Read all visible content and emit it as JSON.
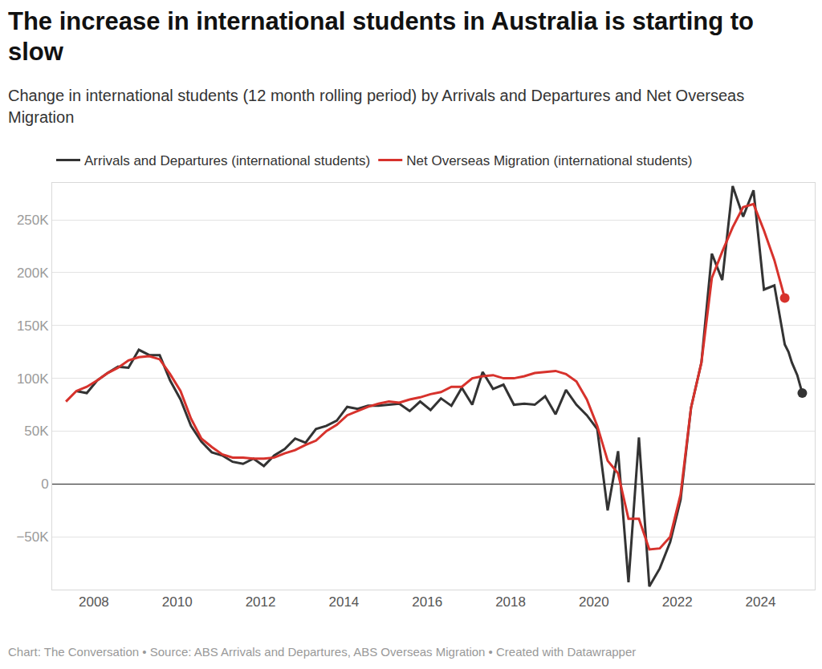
{
  "chart_data": {
    "type": "line",
    "title": "The increase in international students in Australia is starting to slow",
    "subtitle": "Change in international students (12 month rolling period) by Arrivals and Departures and Net Overseas Migration",
    "annotations": [
      "Chart: The Conversation • Source: ABS Arrivals and Departures, ABS Overseas Migration  • Created with Datawrapper"
    ],
    "legend": "top left",
    "grid": true,
    "xlim": [
      2007,
      2025.3
    ],
    "xticks": [
      2008,
      2010,
      2012,
      2014,
      2016,
      2018,
      2020,
      2022,
      2024
    ],
    "ylim": [
      -100000,
      285000
    ],
    "yticks": [
      {
        "value": -50000,
        "label": "−50K"
      },
      0,
      {
        "value": 50000,
        "label": "50K"
      },
      {
        "value": 100000,
        "label": "100K"
      },
      {
        "value": 150000,
        "label": "150K"
      },
      {
        "value": 200000,
        "label": "200K"
      },
      {
        "value": 250000,
        "label": "250K"
      }
    ],
    "series": [
      {
        "name": "Arrivals and Departures (international students)",
        "color": "#333333",
        "marker": "last",
        "x": [
          2007.58,
          2007.83,
          2008.08,
          2008.33,
          2008.58,
          2008.83,
          2009.08,
          2009.33,
          2009.58,
          2009.83,
          2010.08,
          2010.33,
          2010.58,
          2010.83,
          2011.08,
          2011.33,
          2011.58,
          2011.83,
          2012.08,
          2012.33,
          2012.58,
          2012.83,
          2013.08,
          2013.33,
          2013.58,
          2013.83,
          2014.08,
          2014.33,
          2014.58,
          2014.83,
          2015.08,
          2015.33,
          2015.58,
          2015.83,
          2016.08,
          2016.33,
          2016.58,
          2016.83,
          2017.08,
          2017.33,
          2017.58,
          2017.83,
          2018.08,
          2018.33,
          2018.58,
          2018.83,
          2019.08,
          2019.33,
          2019.58,
          2019.83,
          2020.08,
          2020.33,
          2020.58,
          2020.83,
          2021.08,
          2021.33,
          2021.58,
          2021.83,
          2022.08,
          2022.33,
          2022.58,
          2022.83,
          2023.08,
          2023.33,
          2023.58,
          2023.83,
          2024.08,
          2024.33,
          2024.58,
          2024.67,
          2024.75,
          2024.88,
          2025.0
        ],
        "values": [
          88000,
          86000,
          98000,
          105000,
          111000,
          110000,
          127000,
          122000,
          122000,
          98000,
          80000,
          55000,
          40000,
          30000,
          27000,
          21000,
          19000,
          24000,
          17000,
          27000,
          33000,
          43000,
          39000,
          52000,
          55000,
          60000,
          73000,
          71000,
          74000,
          74000,
          75000,
          76000,
          69000,
          78000,
          70000,
          81000,
          74000,
          91000,
          75000,
          106000,
          90000,
          94000,
          75000,
          76000,
          75000,
          83000,
          66000,
          89000,
          75000,
          65000,
          52000,
          -25000,
          31000,
          -93000,
          44000,
          -97000,
          -80000,
          -55000,
          -15000,
          72000,
          115000,
          218000,
          193000,
          282000,
          253000,
          278000,
          184000,
          188000,
          132000,
          125000,
          115000,
          103000,
          86000
        ]
      },
      {
        "name": "Net Overseas Migration (international students)",
        "color": "#d7322c",
        "marker": "last",
        "x": [
          2007.33,
          2007.58,
          2007.83,
          2008.08,
          2008.33,
          2008.58,
          2008.83,
          2009.08,
          2009.33,
          2009.58,
          2009.83,
          2010.08,
          2010.33,
          2010.58,
          2010.83,
          2011.08,
          2011.33,
          2011.58,
          2011.83,
          2012.08,
          2012.33,
          2012.58,
          2012.83,
          2013.08,
          2013.33,
          2013.58,
          2013.83,
          2014.08,
          2014.33,
          2014.58,
          2014.83,
          2015.08,
          2015.33,
          2015.58,
          2015.83,
          2016.08,
          2016.33,
          2016.58,
          2016.83,
          2017.08,
          2017.33,
          2017.58,
          2017.83,
          2018.08,
          2018.33,
          2018.58,
          2018.83,
          2019.08,
          2019.33,
          2019.58,
          2019.83,
          2020.08,
          2020.33,
          2020.58,
          2020.83,
          2021.08,
          2021.33,
          2021.58,
          2021.83,
          2022.08,
          2022.33,
          2022.58,
          2022.83,
          2023.08,
          2023.33,
          2023.58,
          2023.83,
          2024.08,
          2024.33,
          2024.58
        ],
        "values": [
          78000,
          88000,
          92000,
          98000,
          105000,
          110000,
          117000,
          120000,
          121000,
          118000,
          104000,
          88000,
          62000,
          43000,
          35000,
          28000,
          25000,
          25000,
          24000,
          24000,
          25000,
          29000,
          32000,
          37000,
          41000,
          50000,
          56000,
          65000,
          69000,
          73000,
          76000,
          78000,
          77000,
          80000,
          82000,
          85000,
          87000,
          92000,
          92000,
          100000,
          102000,
          103000,
          100000,
          100000,
          102000,
          105000,
          106000,
          107000,
          104000,
          97000,
          80000,
          55000,
          22000,
          10000,
          -33000,
          -33000,
          -62000,
          -61000,
          -50000,
          -10000,
          72000,
          115000,
          195000,
          220000,
          243000,
          262000,
          265000,
          240000,
          212000,
          176000
        ]
      }
    ]
  }
}
